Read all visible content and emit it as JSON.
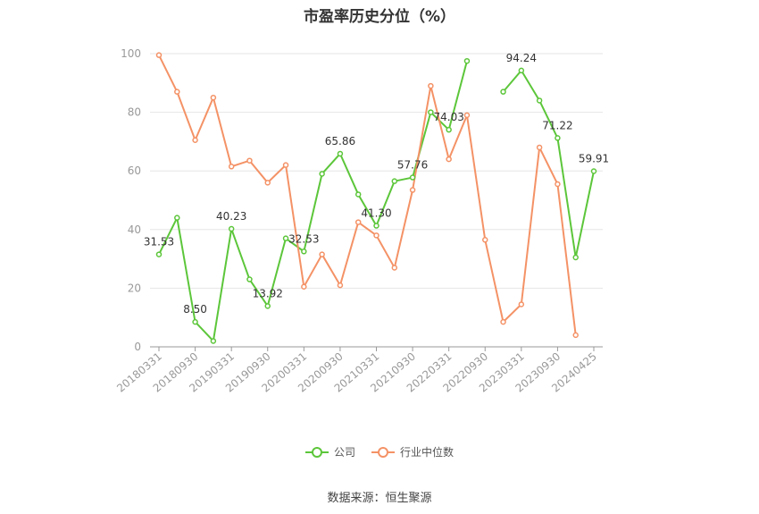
{
  "chart_data": {
    "type": "line",
    "title": "市盈率历史分位（%）",
    "ylim": [
      0,
      100
    ],
    "yticks": [
      0,
      20,
      40,
      60,
      80,
      100
    ],
    "grid": true,
    "legend_position": "bottom-center",
    "x_tick_labels": [
      "20180331",
      "20180930",
      "20190331",
      "20190930",
      "20200331",
      "20200930",
      "20210331",
      "20210930",
      "20220331",
      "20220930",
      "20230331",
      "20230930",
      "20240425"
    ],
    "x": [
      "20180331",
      "20180630",
      "20180930",
      "20181231",
      "20190331",
      "20190630",
      "20190930",
      "20191231",
      "20200331",
      "20200630",
      "20200930",
      "20201231",
      "20210331",
      "20210630",
      "20210930",
      "20211231",
      "20220331",
      "20220630",
      "20220930",
      "20221231",
      "20230331",
      "20230630",
      "20230930",
      "20231231",
      "20240425"
    ],
    "series": [
      {
        "name": "公司",
        "color": "#5cc63a",
        "values": [
          31.53,
          44.0,
          8.5,
          2.0,
          40.23,
          23.0,
          13.92,
          37.0,
          32.53,
          59.0,
          65.86,
          52.0,
          41.3,
          56.5,
          57.76,
          80.0,
          74.03,
          97.5,
          null,
          87.0,
          94.24,
          84.0,
          71.22,
          30.5,
          59.91
        ]
      },
      {
        "name": "行业中位数",
        "color": "#f49266",
        "values": [
          99.5,
          87.0,
          70.5,
          85.0,
          61.5,
          63.5,
          56.0,
          62.0,
          20.5,
          31.5,
          21.0,
          42.5,
          38.0,
          27.0,
          53.5,
          89.0,
          64.0,
          79.0,
          36.5,
          8.5,
          14.5,
          68.0,
          55.5,
          4.0,
          null
        ]
      }
    ],
    "data_labels": [
      {
        "index": 0,
        "text": "31.53"
      },
      {
        "index": 2,
        "text": "8.50"
      },
      {
        "index": 4,
        "text": "40.23"
      },
      {
        "index": 6,
        "text": "13.92"
      },
      {
        "index": 8,
        "text": "32.53"
      },
      {
        "index": 10,
        "text": "65.86"
      },
      {
        "index": 12,
        "text": "41.30"
      },
      {
        "index": 14,
        "text": "57.76"
      },
      {
        "index": 16,
        "text": "74.03"
      },
      {
        "index": 20,
        "text": "94.24"
      },
      {
        "index": 22,
        "text": "71.22"
      },
      {
        "index": 24,
        "text": "59.91"
      }
    ]
  },
  "legend": {
    "company_label": "公司",
    "industry_label": "行业中位数"
  },
  "source": "数据来源：恒生聚源"
}
